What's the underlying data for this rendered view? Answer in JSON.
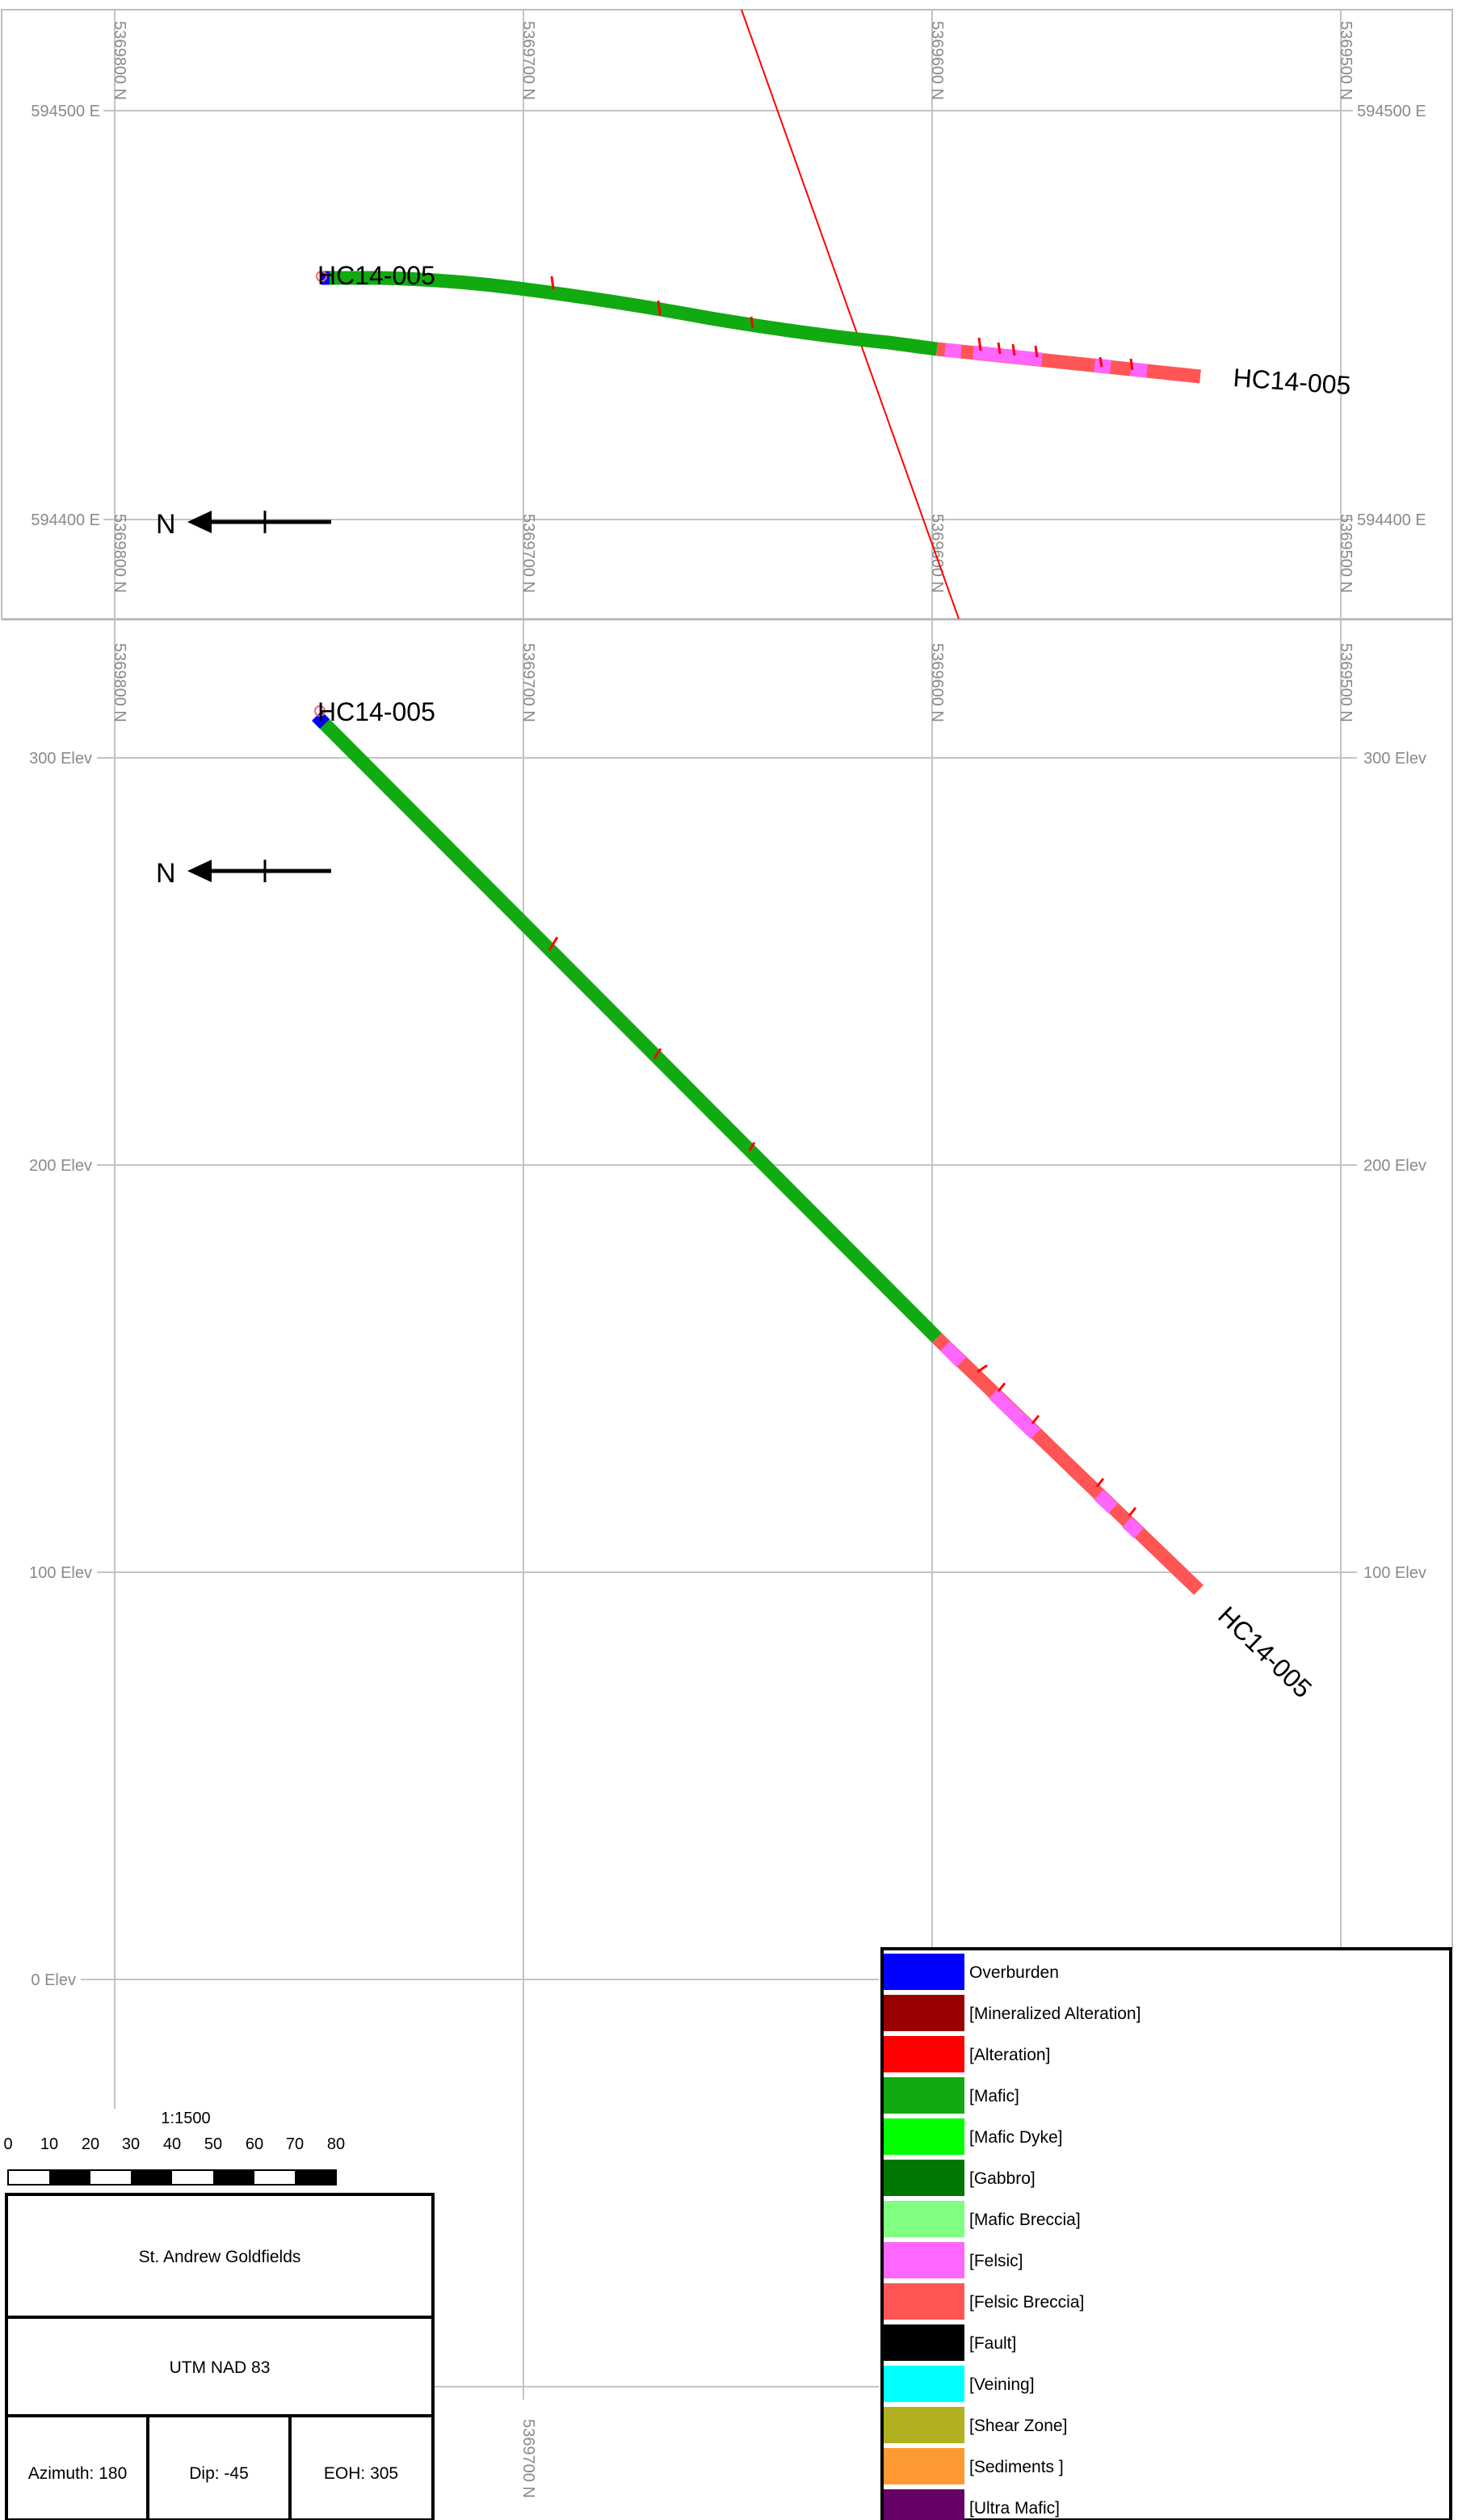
{
  "plan_view": {
    "x_ticks": [
      "5369800 N",
      "5369700 N",
      "5369600 N",
      "5369500 N"
    ],
    "y_ticks": [
      "594500 E",
      "594400 E"
    ],
    "hole_label_collar": "HC14-005",
    "hole_label_end": "HC14-005",
    "north_label": "N"
  },
  "section_view": {
    "x_ticks": [
      "5369800 N",
      "5369700 N",
      "5369600 N",
      "5369500 N"
    ],
    "y_ticks": [
      "300 Elev",
      "200 Elev",
      "100 Elev",
      "0 Elev"
    ],
    "hole_label_collar": "HC14-005",
    "hole_label_end": "HC14-005",
    "north_label": "N",
    "bottom_x_tick": "5369700 N"
  },
  "scale_bar": {
    "ratio": "1:1500",
    "labels": [
      "0",
      "10",
      "20",
      "30",
      "40",
      "50",
      "60",
      "70",
      "80"
    ]
  },
  "title_block": {
    "company": "St. Andrew Goldfields",
    "datum": "UTM NAD 83",
    "azimuth": "Azimuth: 180",
    "dip": "Dip: -45",
    "eoh": "EOH: 305"
  },
  "legend": [
    {
      "label": "Overburden",
      "color": "#0000ff"
    },
    {
      "label": "[Mineralized Alteration]",
      "color": "#990000"
    },
    {
      "label": "[Alteration]",
      "color": "#ff0000"
    },
    {
      "label": "[Mafic]",
      "color": "#11aa11"
    },
    {
      "label": "[Mafic Dyke]",
      "color": "#00ff00"
    },
    {
      "label": "[Gabbro]",
      "color": "#007700"
    },
    {
      "label": "[Mafic Breccia]",
      "color": "#80ff80"
    },
    {
      "label": "[Felsic]",
      "color": "#ff66ff"
    },
    {
      "label": "[Felsic Breccia]",
      "color": "#ff5555"
    },
    {
      "label": "[Fault]",
      "color": "#000000"
    },
    {
      "label": "[Veining]",
      "color": "#00ffff"
    },
    {
      "label": "[Shear Zone]",
      "color": "#b0b020"
    },
    {
      "label": "[Sediments ]",
      "color": "#ff9933"
    },
    {
      "label": "[Ultra Mafic]",
      "color": "#660066"
    }
  ]
}
